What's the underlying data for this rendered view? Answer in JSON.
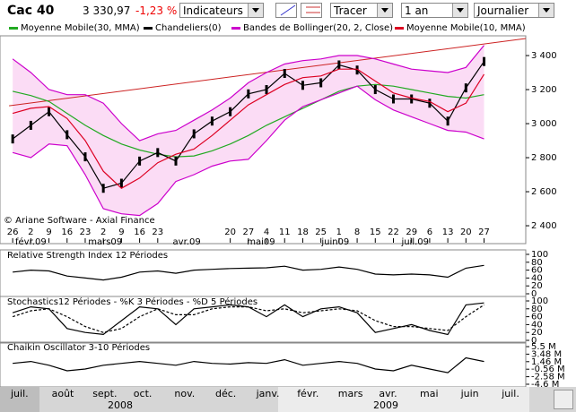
{
  "toolbar": {
    "symbol": "Cac 40",
    "price": "3 330,97",
    "change": "-1,23 %",
    "indicators": "Indicateurs",
    "draw": "Tracer",
    "period": "1 an",
    "interval": "Journalier"
  },
  "chart_data": [
    {
      "type": "line",
      "copyright": "© Ariane Software - Axial Finance",
      "x": [
        0,
        1,
        2,
        3,
        4,
        5,
        6,
        7,
        8,
        9,
        10,
        11,
        12,
        13,
        14,
        15,
        16,
        17,
        18,
        19,
        20,
        21,
        22,
        23,
        24,
        25,
        26
      ],
      "xlim": [
        -0.7,
        28.3
      ],
      "xticks": [
        {
          "value": 0,
          "label": "26"
        },
        {
          "value": 1,
          "label": "2"
        },
        {
          "value": 2,
          "label": "9"
        },
        {
          "value": 3,
          "label": "16"
        },
        {
          "value": 4,
          "label": "23"
        },
        {
          "value": 5,
          "label": "2"
        },
        {
          "value": 6,
          "label": "9"
        },
        {
          "value": 7,
          "label": "16"
        },
        {
          "value": 8,
          "label": "23"
        },
        {
          "value": 12,
          "label": "20"
        },
        {
          "value": 13,
          "label": "27"
        },
        {
          "value": 14,
          "label": "4"
        },
        {
          "value": 15,
          "label": "11"
        },
        {
          "value": 16,
          "label": "18"
        },
        {
          "value": 17,
          "label": "25"
        },
        {
          "value": 18,
          "label": "1"
        },
        {
          "value": 19,
          "label": "8"
        },
        {
          "value": 20,
          "label": "15"
        },
        {
          "value": 21,
          "label": "22"
        },
        {
          "value": 22,
          "label": "29"
        },
        {
          "value": 23,
          "label": "6"
        },
        {
          "value": 24,
          "label": "13"
        },
        {
          "value": 25,
          "label": "20"
        },
        {
          "value": 26,
          "label": "27"
        }
      ],
      "month_ticks": [
        {
          "value": 1,
          "label": "févr.09"
        },
        {
          "value": 5.1,
          "label": "mars09"
        },
        {
          "value": 9.6,
          "label": "avr.09"
        },
        {
          "value": 13.7,
          "label": "mai09"
        },
        {
          "value": 17.8,
          "label": "juin09"
        },
        {
          "value": 22.2,
          "label": "juil.09"
        }
      ],
      "ylim": [
        2316,
        3516
      ],
      "yticks": [
        {
          "value": 2400,
          "label": "2 400"
        },
        {
          "value": 2600,
          "label": "2 600"
        },
        {
          "value": 2800,
          "label": "2 800"
        },
        {
          "value": 3000,
          "label": "3 000"
        },
        {
          "value": 3200,
          "label": "3 200"
        },
        {
          "value": 3400,
          "label": "3 400"
        }
      ],
      "series": [
        {
          "name": "Moyenne Mobile(30, MMA)",
          "color": "#22aa22",
          "values": [
            3190,
            3165,
            3130,
            3060,
            2990,
            2930,
            2880,
            2845,
            2820,
            2805,
            2810,
            2840,
            2880,
            2930,
            2990,
            3040,
            3090,
            3140,
            3190,
            3220,
            3230,
            3220,
            3200,
            3180,
            3160,
            3150,
            3170
          ]
        },
        {
          "name": "Chandeliers(0)",
          "color": "#000000",
          "values": [
            2910,
            2990,
            3070,
            2935,
            2805,
            2620,
            2650,
            2780,
            2830,
            2780,
            2940,
            3015,
            3070,
            3175,
            3200,
            3295,
            3225,
            3240,
            3345,
            3315,
            3200,
            3145,
            3145,
            3120,
            3015,
            3210,
            3365
          ]
        },
        {
          "name": "Bandes de Bollinger(20, 2, Close)",
          "color": "#cc00cc",
          "fill": "#fbdcf5",
          "upper": [
            3380,
            3300,
            3200,
            3170,
            3170,
            3120,
            3000,
            2900,
            2940,
            2960,
            3020,
            3080,
            3150,
            3240,
            3300,
            3350,
            3370,
            3380,
            3400,
            3400,
            3380,
            3350,
            3320,
            3310,
            3300,
            3330,
            3460
          ],
          "lower": [
            2830,
            2800,
            2880,
            2870,
            2700,
            2500,
            2470,
            2460,
            2530,
            2660,
            2700,
            2750,
            2780,
            2790,
            2900,
            3020,
            3100,
            3140,
            3180,
            3220,
            3140,
            3080,
            3040,
            3000,
            2960,
            2950,
            2910
          ]
        },
        {
          "name": "Moyenne Mobile(10, MMA)",
          "color": "#dd0022",
          "values": [
            3060,
            3090,
            3100,
            3030,
            2900,
            2720,
            2620,
            2680,
            2770,
            2820,
            2850,
            2930,
            3020,
            3110,
            3170,
            3230,
            3270,
            3280,
            3320,
            3320,
            3250,
            3180,
            3150,
            3130,
            3070,
            3120,
            3290
          ]
        }
      ],
      "trendline": {
        "color": "#cc2222",
        "x": [
          -0.2,
          28.3
        ],
        "values": [
          3105,
          3500
        ]
      }
    },
    {
      "type": "line",
      "title": "Relative Strength Index 12 Périodes",
      "ylim": [
        0,
        100
      ],
      "yticks": [
        0,
        20,
        40,
        60,
        80,
        100
      ],
      "series": [
        {
          "color": "#000000",
          "values": [
            55,
            60,
            58,
            45,
            40,
            35,
            42,
            55,
            58,
            52,
            60,
            62,
            64,
            65,
            66,
            70,
            60,
            62,
            68,
            62,
            50,
            48,
            50,
            48,
            42,
            65,
            72
          ]
        }
      ]
    },
    {
      "type": "line",
      "title": "Stochastics12 Périodes  -  %K 3 Périodes  -  %D 5 Périodes",
      "ylim": [
        0,
        100
      ],
      "yticks": [
        0,
        20,
        40,
        60,
        80,
        100
      ],
      "series": [
        {
          "color": "#000000",
          "values": [
            70,
            85,
            80,
            30,
            20,
            15,
            50,
            85,
            80,
            40,
            80,
            85,
            90,
            85,
            60,
            90,
            60,
            80,
            85,
            70,
            20,
            30,
            40,
            25,
            15,
            90,
            95
          ]
        },
        {
          "color": "#000000",
          "dash": "3 2",
          "values": [
            60,
            75,
            80,
            60,
            35,
            20,
            30,
            60,
            80,
            65,
            65,
            80,
            85,
            85,
            75,
            80,
            70,
            75,
            80,
            75,
            50,
            35,
            35,
            30,
            25,
            60,
            90
          ]
        }
      ]
    },
    {
      "type": "line",
      "title": "Chaikin Oscillator 3-10 Périodes",
      "ylim": [
        -4.6,
        5.5
      ],
      "yticks": [
        {
          "value": -4.6,
          "label": "-4.6 M"
        },
        {
          "value": -2.58,
          "label": "-2.58 M"
        },
        {
          "value": -0.56,
          "label": "-0.56 M"
        },
        {
          "value": 1.46,
          "label": "1.46 M"
        },
        {
          "value": 3.48,
          "label": "3.48 M"
        },
        {
          "value": 5.5,
          "label": "5.5 M"
        }
      ],
      "series": [
        {
          "color": "#000000",
          "values": [
            1.0,
            1.5,
            0.5,
            -1.0,
            -0.5,
            0.5,
            1.0,
            1.5,
            1.0,
            0.5,
            1.5,
            1.0,
            0.8,
            1.2,
            1.0,
            2.0,
            0.5,
            1.0,
            1.5,
            1.0,
            -0.5,
            -1.0,
            0.5,
            -0.5,
            -1.5,
            2.5,
            1.5
          ]
        }
      ]
    }
  ],
  "navigator": {
    "months": [
      "juil.",
      "août",
      "sept.",
      "oct.",
      "nov.",
      "déc.",
      "janv.",
      "févr.",
      "mars",
      "avr.",
      "mai",
      "juin",
      "juil."
    ],
    "years": [
      "2008",
      "2009"
    ]
  }
}
